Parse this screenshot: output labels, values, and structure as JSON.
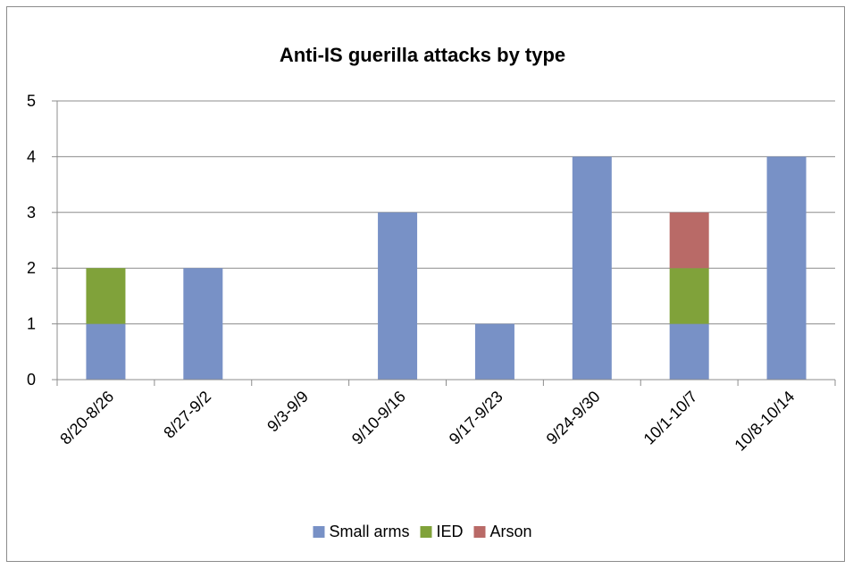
{
  "chart_data": {
    "type": "bar",
    "stacked": true,
    "title": "Anti-IS guerilla attacks by type",
    "xlabel": "",
    "ylabel": "",
    "ylim": [
      0,
      5
    ],
    "yticks": [
      "0",
      "1",
      "2",
      "3",
      "4",
      "5"
    ],
    "categories": [
      "8/20-8/26",
      "8/27-9/2",
      "9/3-9/9",
      "9/10-9/16",
      "9/17-9/23",
      "9/24-9/30",
      "10/1-10/7",
      "10/8-10/14"
    ],
    "series": [
      {
        "name": "Small arms",
        "values": [
          1,
          2,
          0,
          3,
          1,
          4,
          1,
          4
        ],
        "color": "#7891c6"
      },
      {
        "name": "IED",
        "values": [
          1,
          0,
          0,
          0,
          0,
          0,
          1,
          0
        ],
        "color": "#80a23a"
      },
      {
        "name": "Arson",
        "values": [
          0,
          0,
          0,
          0,
          0,
          0,
          1,
          0
        ],
        "color": "#b96a67"
      }
    ],
    "grid": true,
    "legend_position": "bottom"
  }
}
